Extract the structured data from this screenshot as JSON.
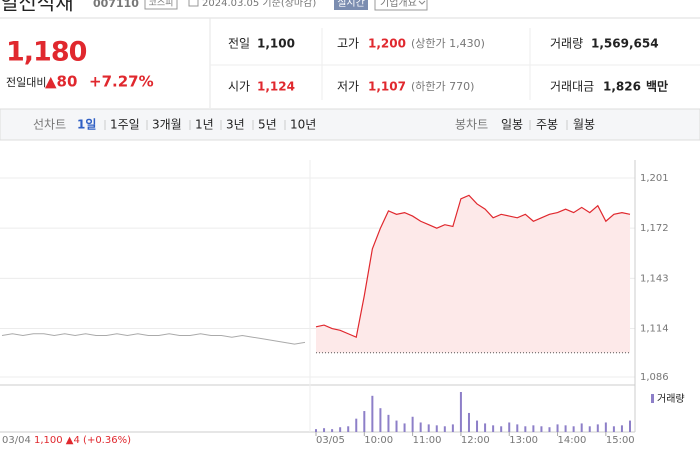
{
  "header": {
    "name": "일신석재",
    "code": "007110",
    "market": "코스피",
    "date": "2024.03.05 기준(장마감)",
    "realtime": "실시간",
    "company_info": "기업개요"
  },
  "quote": {
    "price": "1,180",
    "change_label": "전일대비",
    "change": "▲80",
    "change_rate": "+7.27%"
  },
  "stats": [
    {
      "label": "전일",
      "value": "1,100"
    },
    {
      "label": "고가",
      "value": "1,200",
      "note": "(상한가 1,430)"
    },
    {
      "label": "거래량",
      "value": "1,569,654"
    },
    {
      "label": "시가",
      "value": "1,124"
    },
    {
      "label": "저가",
      "value": "1,107",
      "note": "(하한가 770)"
    },
    {
      "label": "거래대금",
      "value": "1,826",
      "unit": "백만"
    }
  ],
  "tabs": {
    "line_label": "선차트",
    "line": [
      "1일",
      "1주일",
      "3개월",
      "1년",
      "3년",
      "5년",
      "10년"
    ],
    "candle_label": "봉차트",
    "candle": [
      "일봉",
      "주봉",
      "월봉"
    ]
  },
  "chart_data": {
    "type": "line",
    "categories": [
      "09:00",
      "09:10",
      "09:20",
      "09:30",
      "09:40",
      "09:50",
      "10:00",
      "10:10",
      "10:20",
      "10:30",
      "10:40",
      "10:50",
      "11:00",
      "11:10",
      "11:20",
      "11:30",
      "11:40",
      "11:50",
      "12:00",
      "12:10",
      "12:20",
      "12:30",
      "12:40",
      "12:50",
      "13:00",
      "13:10",
      "13:20",
      "13:30",
      "13:40",
      "13:50",
      "14:00",
      "14:10",
      "14:20",
      "14:30",
      "14:40",
      "14:50",
      "15:00",
      "15:10",
      "15:20",
      "15:30"
    ],
    "values": [
      1115,
      1116,
      1114,
      1113,
      1111,
      1109,
      1133,
      1160,
      1172,
      1182,
      1180,
      1181,
      1179,
      1176,
      1174,
      1172,
      1174,
      1173,
      1189,
      1191,
      1186,
      1183,
      1178,
      1180,
      1179,
      1178,
      1180,
      1176,
      1178,
      1180,
      1181,
      1183,
      1181,
      1184,
      1181,
      1185,
      1176,
      1180,
      1181,
      1180
    ],
    "color": "#e0282e",
    "prev_close": 1100,
    "prev_day": {
      "label": "03/04",
      "summary": "1,100 ▲4 (+0.36%)",
      "color": "#aaaaaa",
      "values": [
        1110,
        1111,
        1110,
        1111,
        1111,
        1110,
        1111,
        1110,
        1111,
        1110,
        1110,
        1111,
        1110,
        1111,
        1110,
        1110,
        1111,
        1110,
        1110,
        1111,
        1110,
        1110,
        1109,
        1110,
        1109,
        1108,
        1107,
        1106,
        1105,
        1106
      ]
    },
    "ylim": [
      1086,
      1201
    ],
    "yticks": [
      {
        "value": 1086,
        "label": "1,086"
      },
      {
        "value": 1114,
        "label": "1,114"
      },
      {
        "value": 1143,
        "label": "1,143"
      },
      {
        "value": 1172,
        "label": "1,172"
      },
      {
        "value": 1201,
        "label": "1,201"
      }
    ],
    "xticks": [
      {
        "value": "09:00",
        "label": "03/05"
      },
      {
        "value": "10:00",
        "label": "10:00"
      },
      {
        "value": "11:00",
        "label": "11:00"
      },
      {
        "value": "12:00",
        "label": "12:00"
      },
      {
        "value": "13:00",
        "label": "13:00"
      },
      {
        "value": "14:00",
        "label": "14:00"
      },
      {
        "value": "15:00",
        "label": "15:00"
      }
    ],
    "grid": true,
    "volume": {
      "label": "거래량",
      "color": "#8d7fc8",
      "values": [
        3,
        4,
        3,
        5,
        6,
        14,
        22,
        38,
        25,
        18,
        12,
        9,
        16,
        10,
        8,
        7,
        6,
        8,
        42,
        20,
        12,
        9,
        7,
        6,
        10,
        8,
        6,
        7,
        6,
        5,
        8,
        7,
        6,
        9,
        6,
        8,
        10,
        6,
        7,
        12
      ]
    }
  }
}
